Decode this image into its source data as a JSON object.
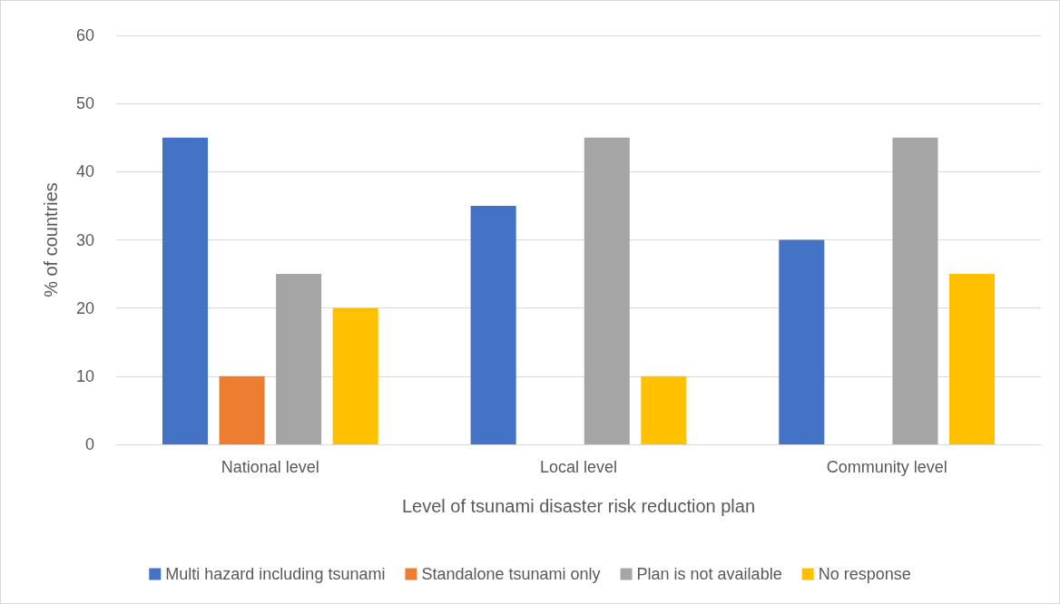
{
  "chart_data": {
    "type": "bar",
    "xlabel": "Level of tsunami disaster risk reduction plan",
    "ylabel": "% of countries",
    "categories": [
      "National level",
      "Local level",
      "Community level"
    ],
    "series": [
      {
        "name": "Multi hazard including tsunami",
        "color": "#4472c4",
        "values": [
          45,
          35,
          30
        ]
      },
      {
        "name": "Standalone tsunami only",
        "color": "#ed7d31",
        "values": [
          10,
          0,
          0
        ]
      },
      {
        "name": "Plan is not available",
        "color": "#a5a5a5",
        "values": [
          25,
          45,
          45
        ]
      },
      {
        "name": "No response",
        "color": "#ffc000",
        "values": [
          20,
          10,
          25
        ]
      }
    ],
    "ylim": [
      0,
      60
    ],
    "yticks": [
      0,
      10,
      20,
      30,
      40,
      50,
      60
    ],
    "grid": "y",
    "legend": "bottom"
  }
}
